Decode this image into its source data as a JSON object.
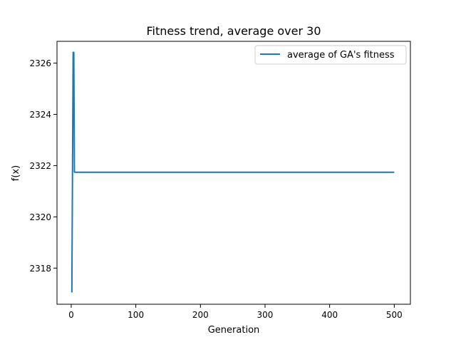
{
  "chart_data": {
    "type": "line",
    "title": "Fitness trend, average over 30",
    "xlabel": "Generation",
    "ylabel": "f(x)",
    "xlim": [
      -22,
      525
    ],
    "ylim": [
      2316.59,
      2326.85
    ],
    "xticks": [
      0,
      100,
      200,
      300,
      400,
      500
    ],
    "yticks": [
      2318,
      2320,
      2322,
      2324,
      2326
    ],
    "grid": false,
    "legend_position": "top-right",
    "series": [
      {
        "name": "average of GA's fitness",
        "color": "#1f77b4",
        "x": [
          1,
          2,
          3,
          4,
          5,
          6,
          500
        ],
        "y": [
          2317.05,
          2321.8,
          2326.42,
          2326.42,
          2321.74,
          2321.74,
          2321.74
        ]
      }
    ]
  }
}
